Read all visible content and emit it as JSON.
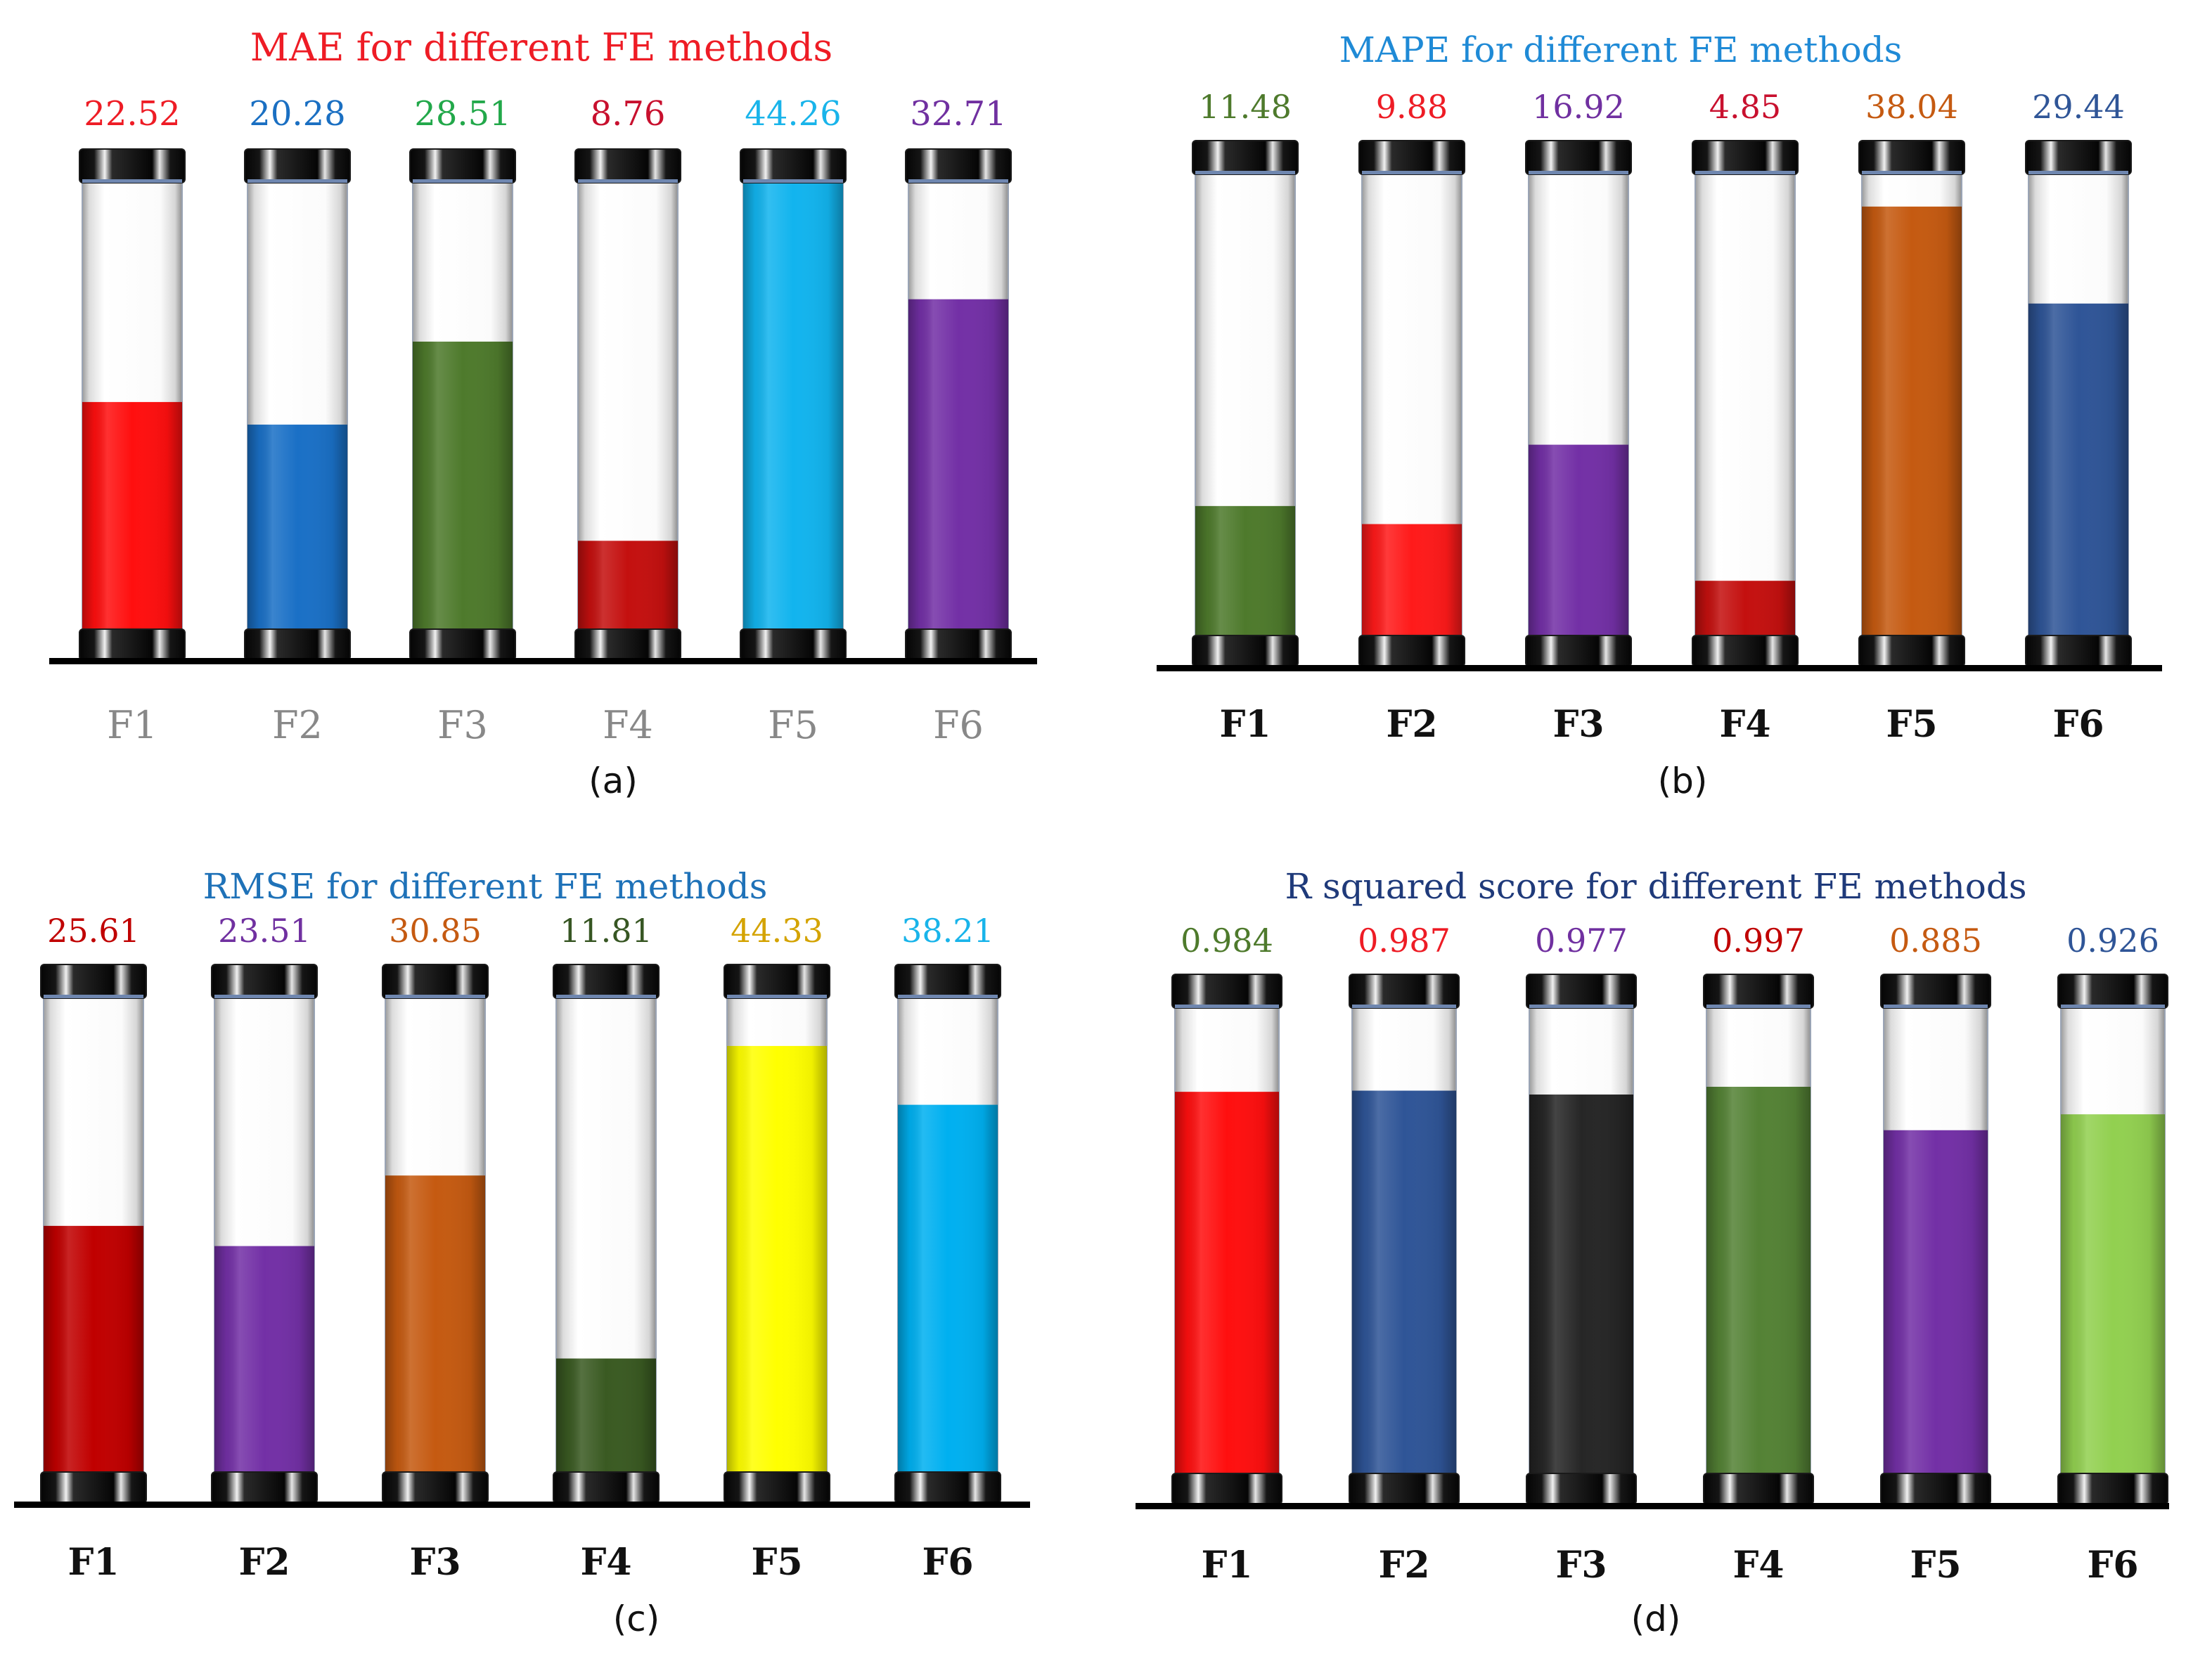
{
  "chart_data": [
    {
      "type": "bar",
      "style": "test-tube",
      "title": "MAE for different FE methods",
      "title_color": "#ee1c25",
      "caption": "(a)",
      "categories": [
        "F1",
        "F2",
        "F3",
        "F4",
        "F5",
        "F6"
      ],
      "values": [
        22.52,
        20.28,
        28.51,
        8.76,
        44.26,
        32.71
      ],
      "value_labels": [
        "22.52",
        "20.28",
        "28.51",
        "8.76",
        "44.26",
        "32.71"
      ],
      "label_colors": [
        "#ee1c25",
        "#1a6fc2",
        "#22a84a",
        "#c8102e",
        "#19b4ea",
        "#7030a0"
      ],
      "fill_colors": [
        "#ff0f0f",
        "#1a70c6",
        "#4e7a2c",
        "#c4100f",
        "#12b4ee",
        "#7330a6"
      ],
      "tick_color": "#888888",
      "tick_bold": false,
      "ylim": [
        0,
        44.26
      ]
    },
    {
      "type": "bar",
      "style": "test-tube",
      "title": "MAPE for different FE methods",
      "title_color": "#1f8ad6",
      "caption": "(b)",
      "categories": [
        "F1",
        "F2",
        "F3",
        "F4",
        "F5",
        "F6"
      ],
      "values": [
        11.48,
        9.88,
        16.92,
        4.85,
        38.04,
        29.44
      ],
      "value_labels": [
        "11.48",
        "9.88",
        "16.92",
        "4.85",
        "38.04",
        "29.44"
      ],
      "label_colors": [
        "#4e7a2c",
        "#ee1c25",
        "#7030a0",
        "#c8102e",
        "#c55a11",
        "#2f5597"
      ],
      "fill_colors": [
        "#4e7a2c",
        "#ff1a1a",
        "#7330a6",
        "#c4100f",
        "#c55a11",
        "#2f5597"
      ],
      "tick_color": "#111111",
      "tick_bold": true,
      "ylim": [
        0,
        40.9
      ]
    },
    {
      "type": "bar",
      "style": "test-tube",
      "title": "RMSE for different FE methods",
      "title_color": "#1f72b8",
      "caption": "(c)",
      "categories": [
        "F1",
        "F2",
        "F3",
        "F4",
        "F5",
        "F6"
      ],
      "values": [
        25.61,
        23.51,
        30.85,
        11.81,
        44.33,
        38.21
      ],
      "value_labels": [
        "25.61",
        "23.51",
        "30.85",
        "11.81",
        "44.33",
        "38.21"
      ],
      "label_colors": [
        "#c00000",
        "#7030a0",
        "#c55a11",
        "#375623",
        "#d4a300",
        "#19b4ea"
      ],
      "fill_colors": [
        "#c00000",
        "#7330a6",
        "#c55a11",
        "#3a5a22",
        "#ffff00",
        "#00b0f0"
      ],
      "tick_color": "#111111",
      "tick_bold": true,
      "ylim": [
        0,
        49.3
      ]
    },
    {
      "type": "bar",
      "style": "test-tube",
      "title": "R squared score for different FE methods",
      "title_color": "#1f3a7a",
      "caption": "(d)",
      "categories": [
        "F1",
        "F2",
        "F3",
        "F4",
        "F5",
        "F6"
      ],
      "values": [
        0.984,
        0.987,
        0.977,
        0.997,
        0.885,
        0.926
      ],
      "value_labels": [
        "0.984",
        "0.987",
        "0.977",
        "0.997",
        "0.885",
        "0.926"
      ],
      "label_colors": [
        "#4e7a2c",
        "#ee1c25",
        "#7030a0",
        "#c00000",
        "#c55a11",
        "#2f5597"
      ],
      "fill_colors": [
        "#ff0f0f",
        "#2f5597",
        "#262626",
        "#548235",
        "#7330a6",
        "#92d050"
      ],
      "tick_color": "#111111",
      "tick_bold": true,
      "ylim": [
        0,
        1.2
      ]
    }
  ]
}
